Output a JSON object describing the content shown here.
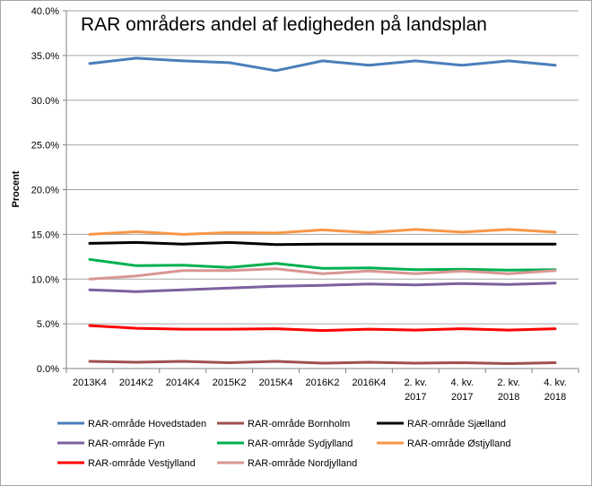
{
  "chart_data": {
    "type": "line",
    "title": "RAR områders andel af ledigheden på landsplan",
    "ylabel": "Procent",
    "xlabel": "",
    "ylim": [
      0,
      40
    ],
    "yticks": [
      "0.0%",
      "5.0%",
      "10.0%",
      "15.0%",
      "20.0%",
      "25.0%",
      "30.0%",
      "35.0%",
      "40.0%"
    ],
    "categories": [
      [
        "2013K4"
      ],
      [
        "2014K2"
      ],
      [
        "2014K4"
      ],
      [
        "2015K2"
      ],
      [
        "2015K4"
      ],
      [
        "2016K2"
      ],
      [
        "2016K4"
      ],
      [
        "2. kv.",
        "2017"
      ],
      [
        "4. kv.",
        "2017"
      ],
      [
        "2. kv.",
        "2018"
      ],
      [
        "4. kv.",
        "2018"
      ]
    ],
    "grid": true,
    "legend_position": "bottom",
    "series": [
      {
        "name": "RAR-område Hovedstaden",
        "color": "#4a7ebb",
        "values": [
          34.1,
          34.7,
          34.4,
          34.2,
          33.3,
          34.4,
          33.9,
          34.4,
          33.9,
          34.4,
          33.9
        ]
      },
      {
        "name": "RAR-område Bornholm",
        "color": "#a0504d",
        "values": [
          0.8,
          0.7,
          0.8,
          0.65,
          0.8,
          0.6,
          0.7,
          0.6,
          0.65,
          0.55,
          0.65
        ]
      },
      {
        "name": "RAR-område Sjælland",
        "color": "#000000",
        "values": [
          14.0,
          14.1,
          13.9,
          14.1,
          13.85,
          13.9,
          13.9,
          13.9,
          13.9,
          13.9,
          13.9
        ]
      },
      {
        "name": "RAR-område Fyn",
        "color": "#7d60a0",
        "values": [
          8.8,
          8.6,
          8.8,
          9.0,
          9.2,
          9.3,
          9.45,
          9.35,
          9.5,
          9.4,
          9.55
        ]
      },
      {
        "name": "RAR-område Sydjylland",
        "color": "#00b050",
        "values": [
          12.2,
          11.5,
          11.55,
          11.3,
          11.75,
          11.2,
          11.25,
          11.05,
          11.1,
          11.0,
          11.05
        ]
      },
      {
        "name": "RAR-område Østjylland",
        "color": "#f79646",
        "values": [
          15.0,
          15.3,
          15.0,
          15.2,
          15.15,
          15.5,
          15.2,
          15.55,
          15.25,
          15.55,
          15.25
        ]
      },
      {
        "name": "RAR-område Vestjylland",
        "color": "#ff0000",
        "values": [
          4.8,
          4.5,
          4.4,
          4.4,
          4.45,
          4.25,
          4.4,
          4.3,
          4.45,
          4.3,
          4.45
        ]
      },
      {
        "name": "RAR-område Nordjylland",
        "color": "#d99694",
        "values": [
          10.0,
          10.35,
          10.95,
          10.95,
          11.15,
          10.6,
          10.9,
          10.6,
          10.9,
          10.6,
          10.95
        ]
      }
    ]
  }
}
